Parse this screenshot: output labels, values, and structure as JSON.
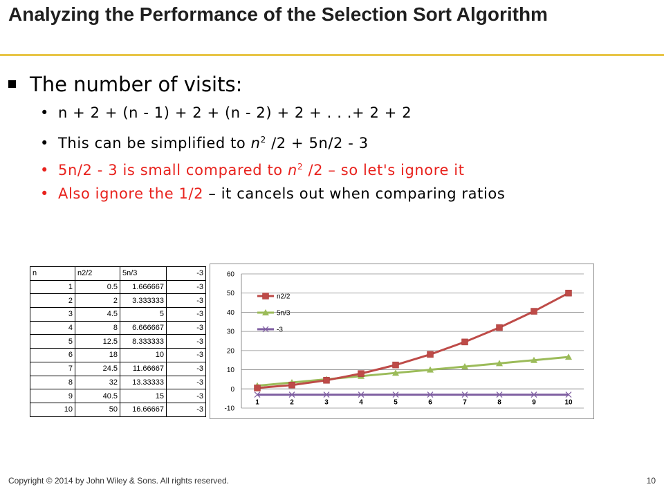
{
  "slide": {
    "title": "Analyzing the Performance of the Selection Sort Algorithm",
    "main_bullet": "The number of visits:",
    "sub_bullets": [
      {
        "text": "n + 2 + (n - 1) + 2 + (n - 2) + 2 + . . .+ 2 + 2"
      },
      {
        "text": "This can be simplified to n2 /2 + 5n/2 - 3"
      },
      {
        "text": "5n/2 - 3 is small compared to n2 /2 – so let's ignore it"
      },
      {
        "text_red": "Also ignore the 1/2",
        "text_rest": " – it cancels out when comparing ratios"
      }
    ],
    "footer_left": "Copyright © 2014 by John Wiley & Sons.  All rights reserved.",
    "footer_right": "10"
  },
  "table": {
    "headers": [
      "n",
      "n2/2",
      "5n/3",
      "-3"
    ],
    "rows": [
      [
        "1",
        "0.5",
        "1.666667",
        "-3"
      ],
      [
        "2",
        "2",
        "3.333333",
        "-3"
      ],
      [
        "3",
        "4.5",
        "5",
        "-3"
      ],
      [
        "4",
        "8",
        "6.666667",
        "-3"
      ],
      [
        "5",
        "12.5",
        "8.333333",
        "-3"
      ],
      [
        "6",
        "18",
        "10",
        "-3"
      ],
      [
        "7",
        "24.5",
        "11.66667",
        "-3"
      ],
      [
        "8",
        "32",
        "13.33333",
        "-3"
      ],
      [
        "9",
        "40.5",
        "15",
        "-3"
      ],
      [
        "10",
        "50",
        "16.66667",
        "-3"
      ]
    ]
  },
  "chart_data": {
    "type": "line",
    "title": "",
    "xlabel": "",
    "ylabel": "",
    "categories": [
      "1",
      "2",
      "3",
      "4",
      "5",
      "6",
      "7",
      "8",
      "9",
      "10"
    ],
    "ylim": [
      -10,
      60
    ],
    "yticks": [
      "60",
      "50",
      "40",
      "30",
      "20",
      "10",
      "0",
      "-10"
    ],
    "grid": true,
    "legend": "top-left",
    "series": [
      {
        "name": "n2/2",
        "values": [
          0.5,
          2,
          4.5,
          8,
          12.5,
          18,
          24.5,
          32,
          40.5,
          50
        ],
        "color": "#be4b48",
        "marker": "square"
      },
      {
        "name": "5n/3",
        "values": [
          1.666667,
          3.333333,
          5,
          6.666667,
          8.333333,
          10,
          11.66667,
          13.33333,
          15,
          16.66667
        ],
        "color": "#9bbb59",
        "marker": "triangle"
      },
      {
        "name": "-3",
        "values": [
          -3,
          -3,
          -3,
          -3,
          -3,
          -3,
          -3,
          -3,
          -3,
          -3
        ],
        "color": "#7e5ea1",
        "marker": "x"
      }
    ]
  }
}
